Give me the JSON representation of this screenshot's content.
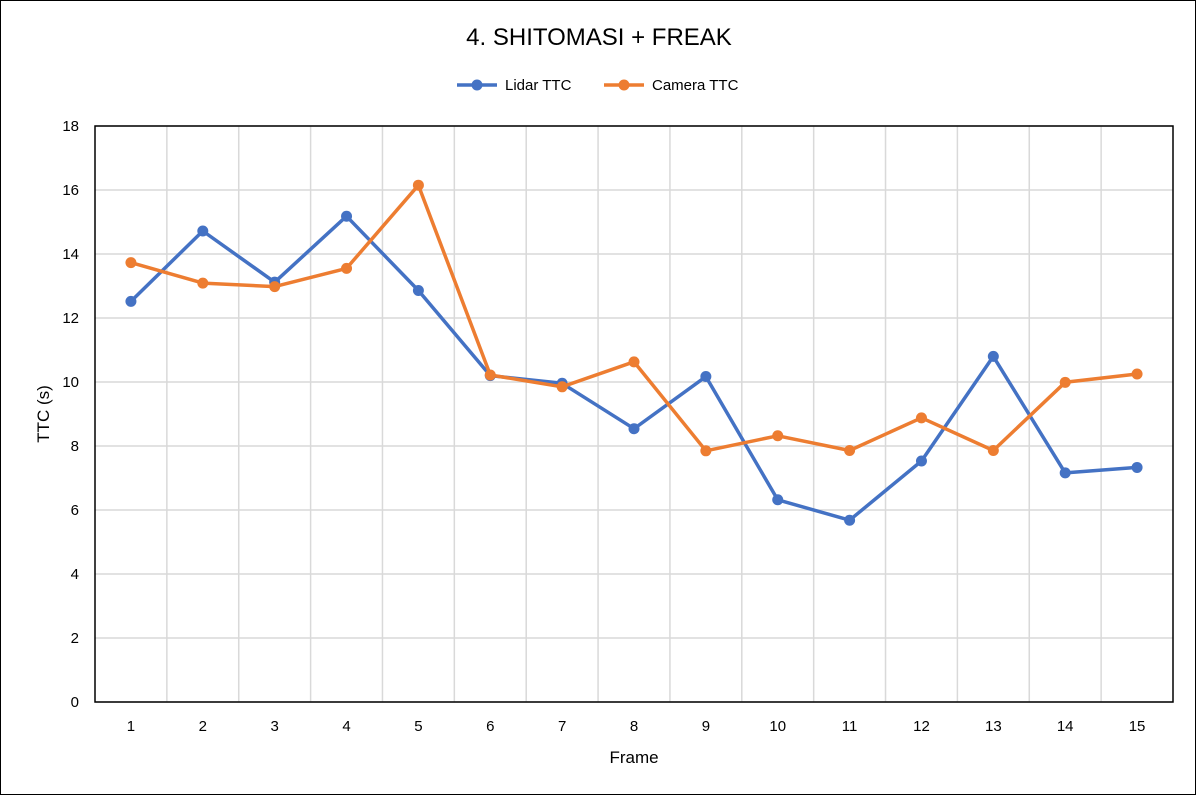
{
  "chart_data": {
    "type": "line",
    "title": "4. SHITOMASI + FREAK",
    "xlabel": "Frame",
    "ylabel": "TTC (s)",
    "categories": [
      "1",
      "2",
      "3",
      "4",
      "5",
      "6",
      "7",
      "8",
      "9",
      "10",
      "11",
      "12",
      "13",
      "14",
      "15"
    ],
    "ylim": [
      0,
      18
    ],
    "yticks": [
      0,
      2,
      4,
      6,
      8,
      10,
      12,
      14,
      16,
      18
    ],
    "grid": true,
    "legend_position": "top-center",
    "series": [
      {
        "name": "Lidar TTC",
        "color": "#4472c4",
        "values": [
          12.52,
          14.72,
          13.12,
          15.18,
          12.86,
          10.2,
          9.96,
          8.54,
          10.17,
          6.32,
          5.68,
          7.53,
          10.8,
          7.16,
          7.33
        ]
      },
      {
        "name": "Camera TTC",
        "color": "#ed7d31",
        "values": [
          13.73,
          13.09,
          12.98,
          13.55,
          16.15,
          10.22,
          9.85,
          10.63,
          7.85,
          8.32,
          7.86,
          8.88,
          7.86,
          9.99,
          10.25
        ]
      }
    ]
  }
}
